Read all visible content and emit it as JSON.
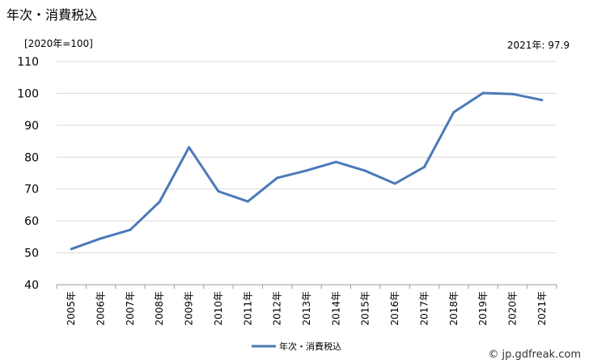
{
  "chart_data": {
    "type": "line",
    "title": "年次・消費税込",
    "unit_label": "[2020年=100]",
    "latest_label": "2021年: 97.9",
    "x": [
      "2005年",
      "2006年",
      "2007年",
      "2008年",
      "2009年",
      "2010年",
      "2011年",
      "2012年",
      "2013年",
      "2014年",
      "2015年",
      "2016年",
      "2017年",
      "2018年",
      "2019年",
      "2020年",
      "2021年"
    ],
    "series": [
      {
        "name": "年次・消費税込",
        "color": "#4a7ab8",
        "values": [
          51.2,
          54.5,
          57.2,
          66.0,
          83.1,
          69.3,
          66.1,
          73.5,
          75.8,
          78.5,
          75.7,
          71.7,
          76.9,
          94.1,
          100.1,
          99.8,
          97.9
        ]
      }
    ],
    "ylim": [
      40,
      110
    ],
    "yticks": [
      40,
      50,
      60,
      70,
      80,
      90,
      100,
      110
    ],
    "grid": true,
    "legend": "bottom-center"
  },
  "credit": "© jp.gdfreak.com"
}
